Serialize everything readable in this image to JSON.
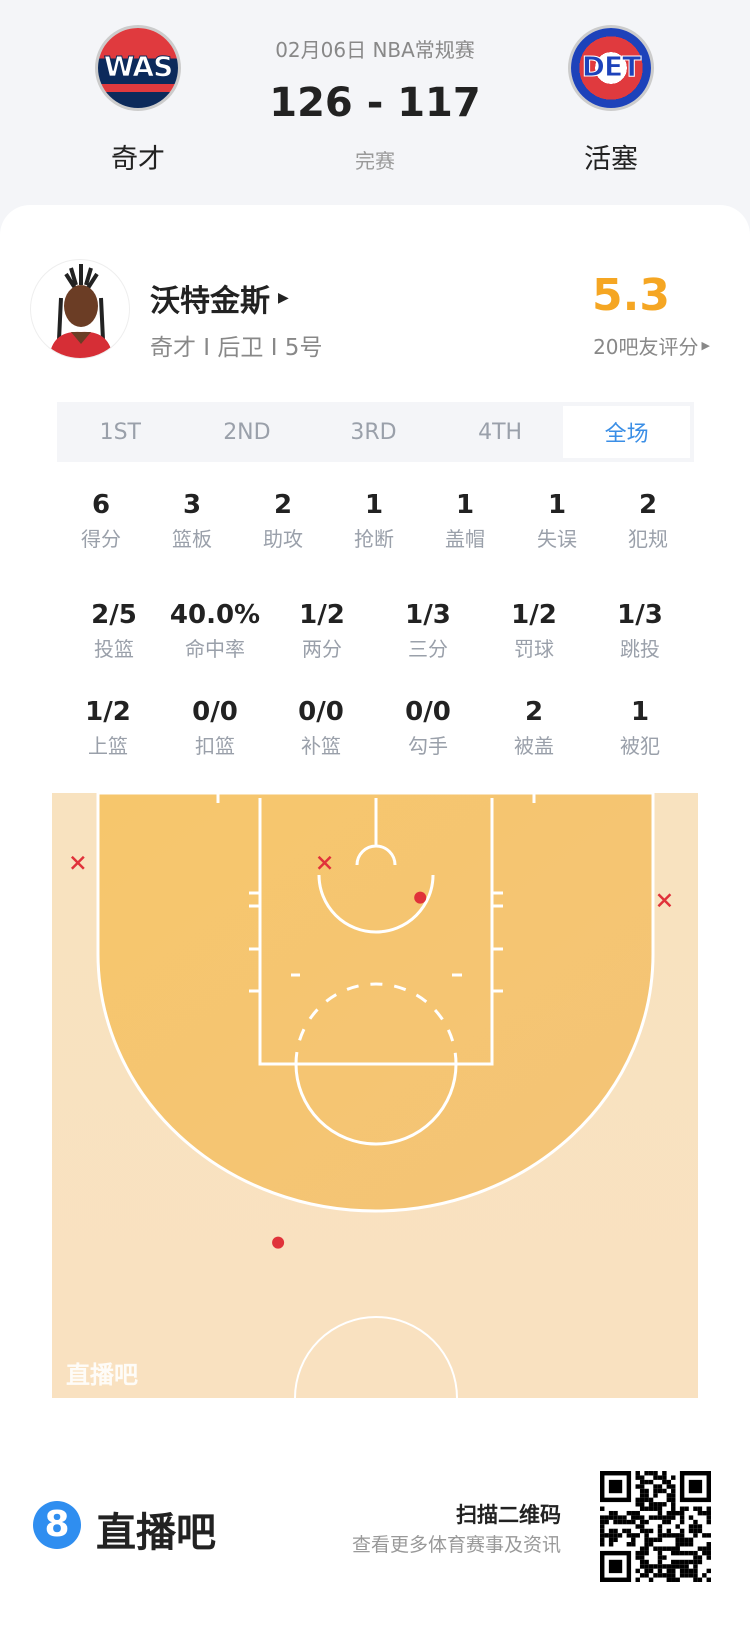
{
  "header": {
    "date_league": "02月06日 NBA常规赛",
    "score": "126 - 117",
    "status": "完赛",
    "home": {
      "abbr": "WAS",
      "name": "奇才",
      "colors": [
        "#e03a3e",
        "#0c2a5b"
      ]
    },
    "away": {
      "abbr": "DET",
      "name": "活塞",
      "colors": [
        "#1d42ba",
        "#e03a3e"
      ]
    }
  },
  "player": {
    "name": "沃特金斯",
    "info": "奇才 I 后卫 I 5号",
    "rating": "5.3",
    "rating_label": "20吧友评分",
    "rating_color": "#f5a623"
  },
  "tabs": [
    {
      "label": "1ST"
    },
    {
      "label": "2ND"
    },
    {
      "label": "3RD"
    },
    {
      "label": "4TH"
    },
    {
      "label": "全场",
      "selected": true
    }
  ],
  "accent": "#3a8ee6",
  "stats_rows": [
    [
      {
        "v": "6",
        "l": "得分"
      },
      {
        "v": "3",
        "l": "篮板"
      },
      {
        "v": "2",
        "l": "助攻"
      },
      {
        "v": "1",
        "l": "抢断"
      },
      {
        "v": "1",
        "l": "盖帽"
      },
      {
        "v": "1",
        "l": "失误"
      },
      {
        "v": "2",
        "l": "犯规"
      }
    ],
    [
      {
        "v": "2/5",
        "l": "投篮"
      },
      {
        "v": "40.0%",
        "l": "命中率"
      },
      {
        "v": "1/2",
        "l": "两分"
      },
      {
        "v": "1/3",
        "l": "三分"
      },
      {
        "v": "1/2",
        "l": "罚球"
      },
      {
        "v": "1/3",
        "l": "跳投"
      }
    ],
    [
      {
        "v": "1/2",
        "l": "上篮"
      },
      {
        "v": "0/0",
        "l": "扣篮"
      },
      {
        "v": "0/0",
        "l": "补篮"
      },
      {
        "v": "0/0",
        "l": "勾手"
      },
      {
        "v": "2",
        "l": "被盖"
      },
      {
        "v": "1",
        "l": "被犯"
      }
    ]
  ],
  "chart_data": {
    "type": "scatter",
    "title": "",
    "units": "feet (x from left sideline, y from baseline)",
    "shots": [
      {
        "x": 2.0,
        "y": 5.4,
        "result": "missed"
      },
      {
        "x": 21.1,
        "y": 5.4,
        "result": "missed"
      },
      {
        "x": 28.5,
        "y": 8.1,
        "result": "made"
      },
      {
        "x": 47.4,
        "y": 8.3,
        "result": "missed"
      },
      {
        "x": 17.5,
        "y": 34.8,
        "result": "made"
      }
    ],
    "marker_color": "#e0323a",
    "watermark": "直播吧"
  },
  "footer": {
    "brand": "直播吧",
    "brand_mark": "8",
    "scan_title": "扫描二维码",
    "scan_sub": "查看更多体育赛事及资讯"
  }
}
